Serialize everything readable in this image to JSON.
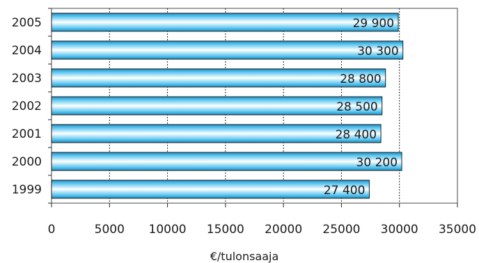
{
  "chart_data": {
    "type": "bar",
    "orientation": "horizontal",
    "categories": [
      "2005",
      "2004",
      "2003",
      "2002",
      "2001",
      "2000",
      "1999"
    ],
    "values": [
      29900,
      30300,
      28800,
      28500,
      28400,
      30200,
      27400
    ],
    "value_labels": [
      "29 900",
      "30 300",
      "28 800",
      "28 500",
      "28 400",
      "30 200",
      "27 400"
    ],
    "xlabel": "€/tulonsaaja",
    "xlim": [
      0,
      35000
    ],
    "x_ticks": [
      0,
      5000,
      10000,
      15000,
      20000,
      25000,
      30000,
      35000
    ],
    "x_tick_labels": [
      "0",
      "5000",
      "10000",
      "15000",
      "20000",
      "25000",
      "30000",
      "35000"
    ],
    "grid": "vertical dotted",
    "bar_color": "#29a9e0"
  }
}
